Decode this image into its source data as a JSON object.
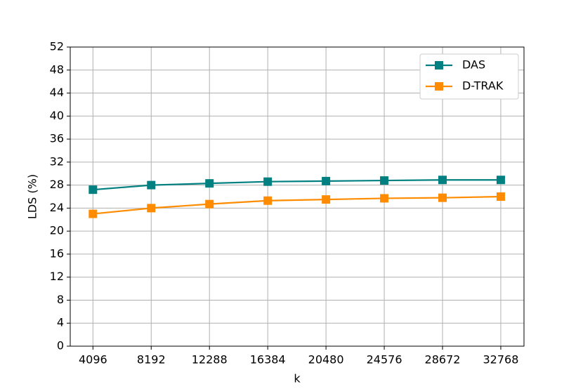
{
  "chart_data": {
    "type": "line",
    "x_label": "k",
    "y_label": "LDS (%)",
    "x": [
      4096,
      8192,
      12288,
      16384,
      20480,
      24576,
      28672,
      32768
    ],
    "series": [
      {
        "name": "DAS",
        "color": "#008080",
        "values": [
          27.2,
          28.0,
          28.3,
          28.6,
          28.7,
          28.8,
          28.9,
          28.9
        ]
      },
      {
        "name": "D-TRAK",
        "color": "#ff8c00",
        "values": [
          23.0,
          24.0,
          24.7,
          25.3,
          25.5,
          25.7,
          25.8,
          26.0
        ]
      }
    ],
    "xlim": [
      2500,
      34400
    ],
    "xticks": [
      4096,
      8192,
      12288,
      16384,
      20480,
      24576,
      28672,
      32768
    ],
    "ylim": [
      0,
      52
    ],
    "yticks": [
      0,
      4,
      8,
      12,
      16,
      20,
      24,
      28,
      32,
      36,
      40,
      44,
      48,
      52
    ],
    "grid": true,
    "legend": "upper right",
    "marker": "square"
  }
}
